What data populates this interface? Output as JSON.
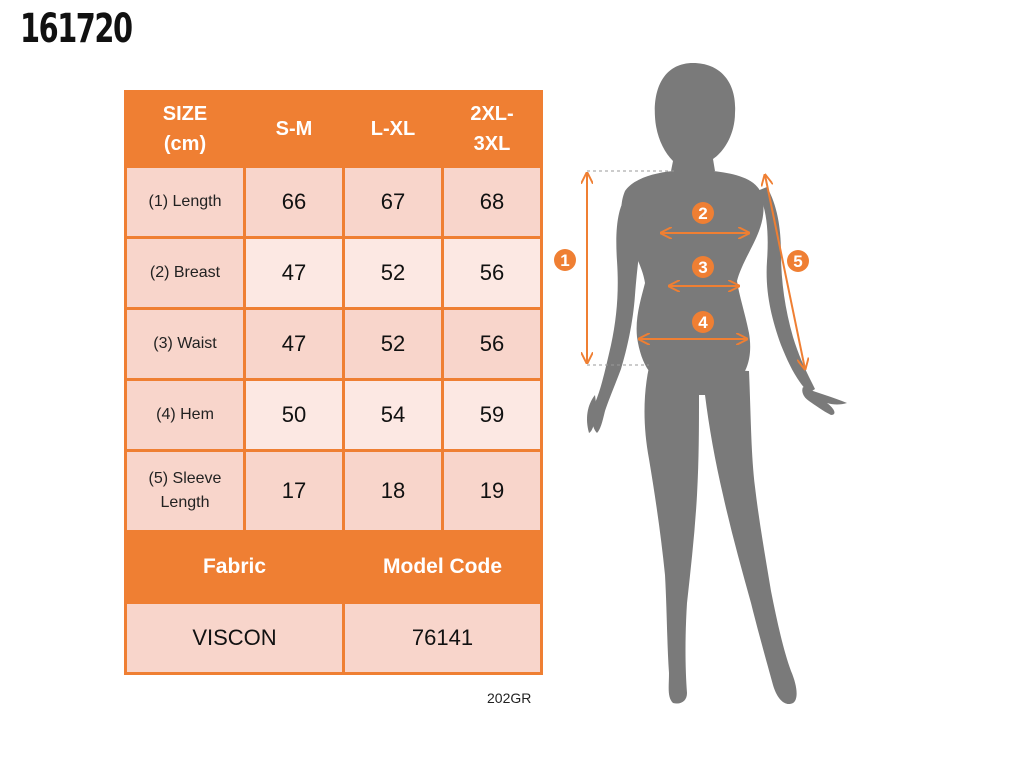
{
  "product_code": "161720",
  "table": {
    "header": [
      "SIZE (cm)",
      "S-M",
      "L-XL",
      "2XL-3XL"
    ],
    "header_lines": [
      [
        "SIZE",
        "(cm)"
      ],
      [
        "S-M"
      ],
      [
        "L-XL"
      ],
      [
        "2XL-",
        "3XL"
      ]
    ],
    "rows": [
      {
        "label": "(1) Length",
        "label_lines": [
          "(1) Length"
        ],
        "values": [
          "66",
          "67",
          "68"
        ]
      },
      {
        "label": "(2) Breast",
        "label_lines": [
          "(2) Breast"
        ],
        "values": [
          "47",
          "52",
          "56"
        ]
      },
      {
        "label": "(3) Waist",
        "label_lines": [
          "(3) Waist"
        ],
        "values": [
          "47",
          "52",
          "56"
        ]
      },
      {
        "label": "(4) Hem",
        "label_lines": [
          "(4) Hem"
        ],
        "values": [
          "50",
          "54",
          "59"
        ]
      },
      {
        "label": "(5) Sleeve Length",
        "label_lines": [
          "(5) Sleeve",
          "Length"
        ],
        "values": [
          "17",
          "18",
          "19"
        ]
      }
    ],
    "footer": {
      "fabric_label": "Fabric",
      "model_code_label": "Model Code",
      "fabric_value": "VISCON",
      "model_code_value": "76141"
    }
  },
  "reference_code": "202GR",
  "figure": {
    "markers": [
      "1",
      "2",
      "3",
      "4",
      "5"
    ],
    "silhouette_color": "#7a7a7a",
    "accent_color": "#ef7f33"
  }
}
